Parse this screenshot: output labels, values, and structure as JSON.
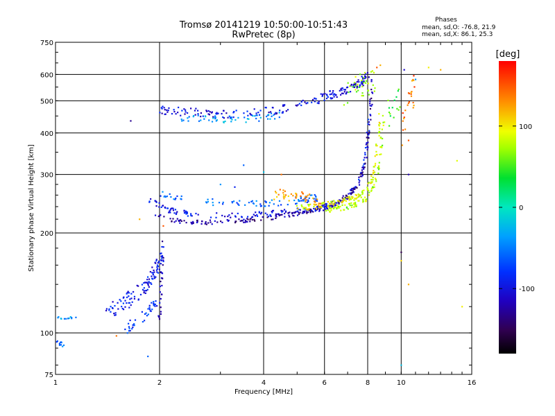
{
  "chart_data": {
    "type": "scatter",
    "title": "Tromsø 20141219 10:50:00-10:51:43",
    "subtitle": "RwPretec (8p)",
    "xlabel": "Frequency [MHz]",
    "ylabel": "Stationary phase Virtual Height [km]",
    "x_scale": "log",
    "y_scale": "log",
    "xlim": [
      1,
      16
    ],
    "ylim": [
      75,
      750
    ],
    "x_ticks": [
      1,
      2,
      4,
      6,
      8,
      10,
      16
    ],
    "x_tick_labels": [
      "1",
      "2",
      "4",
      "6",
      "8",
      "10",
      "16"
    ],
    "y_ticks": [
      75,
      100,
      200,
      300,
      400,
      500,
      600,
      750
    ],
    "y_tick_labels": [
      "75",
      "100",
      "200",
      "300",
      "400",
      "500",
      "600",
      "750"
    ],
    "grid": true,
    "stats": {
      "header": "Phases",
      "line_o": "mean, sd,O: -76.8, 21.9",
      "line_x": "mean, sd,X:  86.1, 25.3"
    },
    "colorbar": {
      "label": "[deg]",
      "range": [
        -180,
        180
      ],
      "tick_values": [
        100,
        0,
        -100
      ],
      "tick_labels": [
        "100",
        "0",
        "-100"
      ]
    },
    "traces": [
      {
        "x": [
          1.0,
          1.05,
          1.1,
          1.15
        ],
        "y": [
          112,
          111,
          111,
          112
        ],
        "spread": 2,
        "phase": -40,
        "n": 12
      },
      {
        "x": [
          1.0,
          1.03,
          1.06
        ],
        "y": [
          96,
          93,
          90
        ],
        "spread": 3,
        "phase": -55,
        "n": 10
      },
      {
        "x": [
          1.4,
          1.6,
          1.8,
          1.95,
          2.05
        ],
        "y": [
          115,
          125,
          135,
          155,
          170
        ],
        "spread": 12,
        "phase": -95,
        "n": 110
      },
      {
        "x": [
          1.55,
          1.7,
          1.85,
          1.95
        ],
        "y": [
          100,
          108,
          115,
          125
        ],
        "spread": 8,
        "phase": -80,
        "n": 40
      },
      {
        "x": [
          2.0,
          2.05
        ],
        "y": [
          110,
          195
        ],
        "spread": 4,
        "phase": -110,
        "n": 30
      },
      {
        "x": [
          1.85,
          2.0,
          2.2,
          2.5,
          3.0,
          3.5,
          4.0,
          4.5,
          5.0,
          5.5,
          6.0,
          6.5,
          7.0,
          7.5,
          7.9,
          8.1
        ],
        "y": [
          255,
          240,
          232,
          228,
          226,
          226,
          228,
          230,
          233,
          236,
          240,
          246,
          258,
          280,
          340,
          470
        ],
        "spread": 4,
        "phase": -95,
        "n": 200
      },
      {
        "x": [
          1.95,
          2.2,
          2.6,
          3.0,
          3.5,
          4.0,
          4.5,
          5.0,
          5.5,
          6.0,
          6.5,
          7.0,
          7.5,
          7.9,
          8.1,
          8.3
        ],
        "y": [
          228,
          218,
          215,
          216,
          218,
          221,
          225,
          229,
          233,
          238,
          245,
          258,
          280,
          330,
          440,
          600
        ],
        "spread": 3,
        "phase": -125,
        "n": 200
      },
      {
        "x": [
          2.0,
          2.3,
          2.8,
          3.3,
          3.8,
          4.3,
          4.8,
          5.3,
          5.8
        ],
        "y": [
          265,
          255,
          248,
          246,
          246,
          247,
          250,
          253,
          256
        ],
        "spread": 5,
        "phase": -60,
        "n": 90
      },
      {
        "x": [
          4.3,
          4.7,
          5.1,
          5.5,
          5.9
        ],
        "y": [
          262,
          260,
          258,
          252,
          246
        ],
        "spread": 8,
        "phase": 130,
        "n": 45
      },
      {
        "x": [
          5.0,
          5.5,
          6.0,
          6.5,
          7.0,
          7.5,
          8.0,
          8.3,
          8.5,
          8.7
        ],
        "y": [
          238,
          240,
          243,
          247,
          252,
          258,
          270,
          300,
          360,
          470
        ],
        "spread": 4,
        "phase": 90,
        "n": 130
      },
      {
        "x": [
          6.0,
          6.5,
          7.0,
          7.5,
          8.0,
          8.4,
          8.7,
          8.9
        ],
        "y": [
          234,
          236,
          240,
          246,
          256,
          280,
          330,
          450
        ],
        "spread": 4,
        "phase": 75,
        "n": 90
      },
      {
        "x": [
          2.0,
          2.3,
          2.7,
          3.2,
          3.8,
          4.4,
          5.0,
          5.6,
          6.2,
          6.8,
          7.3,
          7.7,
          8.0
        ],
        "y": [
          470,
          465,
          458,
          455,
          460,
          470,
          485,
          500,
          520,
          535,
          550,
          570,
          600
        ],
        "spread": 6,
        "phase": -100,
        "n": 200
      },
      {
        "x": [
          2.3,
          2.8,
          3.3,
          3.9,
          4.5
        ],
        "y": [
          445,
          440,
          440,
          443,
          452
        ],
        "spread": 5,
        "phase": -40,
        "n": 55
      },
      {
        "x": [
          6.8,
          7.2,
          7.6,
          8.0,
          8.4
        ],
        "y": [
          520,
          540,
          555,
          570,
          560
        ],
        "spread": 18,
        "phase": 70,
        "n": 35
      },
      {
        "x": [
          10.0,
          10.3,
          10.6,
          11.0
        ],
        "y": [
          400,
          450,
          500,
          550
        ],
        "spread": 25,
        "phase": 140,
        "n": 25
      },
      {
        "x": [
          9.2,
          9.6,
          10.0
        ],
        "y": [
          460,
          480,
          500
        ],
        "spread": 20,
        "phase": 40,
        "n": 15
      }
    ],
    "points": [
      {
        "x": 1.65,
        "y": 435,
        "phase": -130
      },
      {
        "x": 3.5,
        "y": 320,
        "phase": -60
      },
      {
        "x": 4.0,
        "y": 305,
        "phase": -20
      },
      {
        "x": 4.5,
        "y": 300,
        "phase": 140
      },
      {
        "x": 3.0,
        "y": 280,
        "phase": -40
      },
      {
        "x": 3.3,
        "y": 275,
        "phase": -90
      },
      {
        "x": 10.0,
        "y": 175,
        "phase": -150
      },
      {
        "x": 10.0,
        "y": 165,
        "phase": 110
      },
      {
        "x": 10.5,
        "y": 140,
        "phase": 120
      },
      {
        "x": 15.0,
        "y": 120,
        "phase": 100
      },
      {
        "x": 14.5,
        "y": 330,
        "phase": 90
      },
      {
        "x": 10.5,
        "y": 380,
        "phase": 150
      },
      {
        "x": 13.0,
        "y": 620,
        "phase": 120
      },
      {
        "x": 12.0,
        "y": 630,
        "phase": 100
      },
      {
        "x": 10.5,
        "y": 300,
        "phase": -120
      },
      {
        "x": 10.0,
        "y": 80,
        "phase": -20
      },
      {
        "x": 1.85,
        "y": 85,
        "phase": -60
      },
      {
        "x": 1.5,
        "y": 98,
        "phase": 140
      },
      {
        "x": 1.75,
        "y": 220,
        "phase": 120
      },
      {
        "x": 2.05,
        "y": 210,
        "phase": 150
      },
      {
        "x": 11.0,
        "y": 580,
        "phase": -40
      },
      {
        "x": 10.2,
        "y": 620,
        "phase": -110
      },
      {
        "x": 8.7,
        "y": 640,
        "phase": 120
      },
      {
        "x": 8.5,
        "y": 630,
        "phase": 150
      }
    ]
  }
}
